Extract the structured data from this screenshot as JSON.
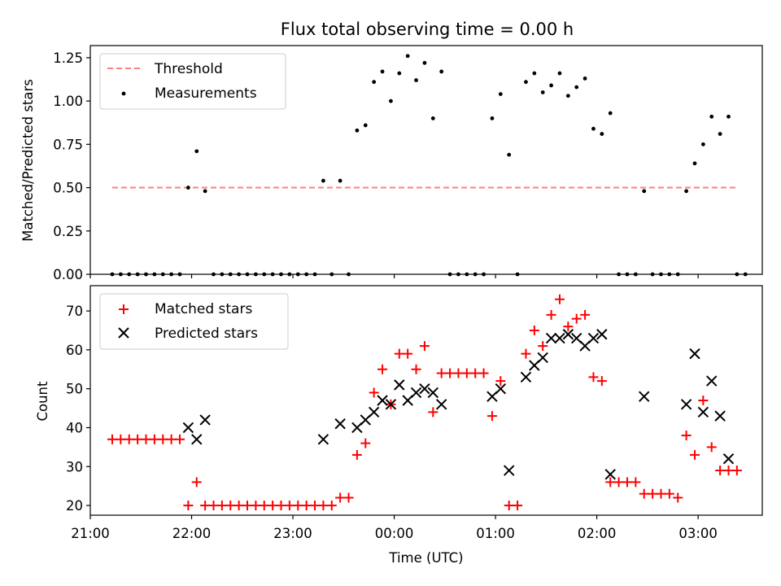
{
  "figure": {
    "title": "Flux total observing time = 0.00 h"
  },
  "colors": {
    "threshold": "#ff7f7f",
    "measurements": "#000000",
    "matched": "#ff0000",
    "predicted": "#000000",
    "axes": "#000000"
  },
  "chart_data": [
    {
      "type": "scatter",
      "panel": "top",
      "ylabel": "Matched/Predicted stars",
      "xlabel": "",
      "ylim": [
        0,
        1.32
      ],
      "yticks": [
        "0.00",
        "0.25",
        "0.50",
        "0.75",
        "1.00",
        "1.25"
      ],
      "ytick_values": [
        0,
        0.25,
        0.5,
        0.75,
        1.0,
        1.25
      ],
      "xlim": [
        "21:00",
        "03:38"
      ],
      "xticks": [],
      "legend": {
        "placement": "top-left",
        "entries": [
          "Threshold",
          "Measurements"
        ]
      },
      "threshold": {
        "name": "Threshold",
        "value": 0.5,
        "x_range": [
          "21:13",
          "03:23"
        ]
      },
      "series": [
        {
          "name": "Measurements",
          "points": [
            [
              "21:13",
              0
            ],
            [
              "21:18",
              0
            ],
            [
              "21:23",
              0
            ],
            [
              "21:28",
              0
            ],
            [
              "21:33",
              0
            ],
            [
              "21:38",
              0
            ],
            [
              "21:43",
              0
            ],
            [
              "21:48",
              0
            ],
            [
              "21:53",
              0
            ],
            [
              "21:58",
              0.5
            ],
            [
              "22:03",
              0.71
            ],
            [
              "22:08",
              0.48
            ],
            [
              "22:13",
              0
            ],
            [
              "22:18",
              0
            ],
            [
              "22:23",
              0
            ],
            [
              "22:28",
              0
            ],
            [
              "22:33",
              0
            ],
            [
              "22:38",
              0
            ],
            [
              "22:43",
              0
            ],
            [
              "22:48",
              0
            ],
            [
              "22:53",
              0
            ],
            [
              "22:58",
              0
            ],
            [
              "23:03",
              0
            ],
            [
              "23:08",
              0
            ],
            [
              "23:13",
              0
            ],
            [
              "23:18",
              0.54
            ],
            [
              "23:23",
              0
            ],
            [
              "23:28",
              0.54
            ],
            [
              "23:33",
              0
            ],
            [
              "23:38",
              0.83
            ],
            [
              "23:43",
              0.86
            ],
            [
              "23:48",
              1.11
            ],
            [
              "23:53",
              1.17
            ],
            [
              "23:58",
              1.0
            ],
            [
              "00:03",
              1.16
            ],
            [
              "00:08",
              1.26
            ],
            [
              "00:13",
              1.12
            ],
            [
              "00:18",
              1.22
            ],
            [
              "00:23",
              0.9
            ],
            [
              "00:28",
              1.17
            ],
            [
              "00:33",
              0
            ],
            [
              "00:38",
              0
            ],
            [
              "00:43",
              0
            ],
            [
              "00:48",
              0
            ],
            [
              "00:53",
              0
            ],
            [
              "00:58",
              0.9
            ],
            [
              "01:03",
              1.04
            ],
            [
              "01:08",
              0.69
            ],
            [
              "01:13",
              0
            ],
            [
              "01:18",
              1.11
            ],
            [
              "01:23",
              1.16
            ],
            [
              "01:28",
              1.05
            ],
            [
              "01:33",
              1.09
            ],
            [
              "01:38",
              1.16
            ],
            [
              "01:43",
              1.03
            ],
            [
              "01:48",
              1.08
            ],
            [
              "01:53",
              1.13
            ],
            [
              "01:58",
              0.84
            ],
            [
              "02:03",
              0.81
            ],
            [
              "02:08",
              0.93
            ],
            [
              "02:13",
              0
            ],
            [
              "02:18",
              0
            ],
            [
              "02:23",
              0
            ],
            [
              "02:28",
              0.48
            ],
            [
              "02:33",
              0
            ],
            [
              "02:38",
              0
            ],
            [
              "02:43",
              0
            ],
            [
              "02:48",
              0
            ],
            [
              "02:53",
              0.48
            ],
            [
              "02:58",
              0.64
            ],
            [
              "03:03",
              0.75
            ],
            [
              "03:08",
              0.91
            ],
            [
              "03:13",
              0.81
            ],
            [
              "03:18",
              0.91
            ],
            [
              "03:23",
              0
            ],
            [
              "03:28",
              0
            ]
          ]
        }
      ]
    },
    {
      "type": "scatter",
      "panel": "bottom",
      "ylabel": "Count",
      "xlabel": "Time (UTC)",
      "ylim": [
        17.5,
        76.5
      ],
      "yticks": [
        "20",
        "30",
        "40",
        "50",
        "60",
        "70"
      ],
      "ytick_values": [
        20,
        30,
        40,
        50,
        60,
        70
      ],
      "xlim": [
        "21:00",
        "03:38"
      ],
      "xticks": [
        "21:00",
        "22:00",
        "23:00",
        "00:00",
        "01:00",
        "02:00",
        "03:00"
      ],
      "legend": {
        "placement": "top-left",
        "entries": [
          "Matched stars",
          "Predicted stars"
        ]
      },
      "series": [
        {
          "name": "Matched stars",
          "points": [
            [
              "21:13",
              37
            ],
            [
              "21:18",
              37
            ],
            [
              "21:23",
              37
            ],
            [
              "21:28",
              37
            ],
            [
              "21:33",
              37
            ],
            [
              "21:38",
              37
            ],
            [
              "21:43",
              37
            ],
            [
              "21:48",
              37
            ],
            [
              "21:53",
              37
            ],
            [
              "21:58",
              20
            ],
            [
              "22:03",
              26
            ],
            [
              "22:08",
              20
            ],
            [
              "22:13",
              20
            ],
            [
              "22:18",
              20
            ],
            [
              "22:23",
              20
            ],
            [
              "22:28",
              20
            ],
            [
              "22:33",
              20
            ],
            [
              "22:38",
              20
            ],
            [
              "22:43",
              20
            ],
            [
              "22:48",
              20
            ],
            [
              "22:53",
              20
            ],
            [
              "22:58",
              20
            ],
            [
              "23:03",
              20
            ],
            [
              "23:08",
              20
            ],
            [
              "23:13",
              20
            ],
            [
              "23:18",
              20
            ],
            [
              "23:23",
              20
            ],
            [
              "23:28",
              22
            ],
            [
              "23:33",
              22
            ],
            [
              "23:38",
              33
            ],
            [
              "23:43",
              36
            ],
            [
              "23:48",
              49
            ],
            [
              "23:53",
              55
            ],
            [
              "23:58",
              46
            ],
            [
              "00:03",
              59
            ],
            [
              "00:08",
              59
            ],
            [
              "00:13",
              55
            ],
            [
              "00:18",
              61
            ],
            [
              "00:23",
              44
            ],
            [
              "00:28",
              54
            ],
            [
              "00:33",
              54
            ],
            [
              "00:38",
              54
            ],
            [
              "00:43",
              54
            ],
            [
              "00:48",
              54
            ],
            [
              "00:53",
              54
            ],
            [
              "00:58",
              43
            ],
            [
              "01:03",
              52
            ],
            [
              "01:08",
              20
            ],
            [
              "01:13",
              20
            ],
            [
              "01:18",
              59
            ],
            [
              "01:23",
              65
            ],
            [
              "01:28",
              61
            ],
            [
              "01:33",
              69
            ],
            [
              "01:38",
              73
            ],
            [
              "01:43",
              66
            ],
            [
              "01:48",
              68
            ],
            [
              "01:53",
              69
            ],
            [
              "01:58",
              53
            ],
            [
              "02:03",
              52
            ],
            [
              "02:08",
              26
            ],
            [
              "02:13",
              26
            ],
            [
              "02:18",
              26
            ],
            [
              "02:23",
              26
            ],
            [
              "02:28",
              23
            ],
            [
              "02:33",
              23
            ],
            [
              "02:38",
              23
            ],
            [
              "02:43",
              23
            ],
            [
              "02:48",
              22
            ],
            [
              "02:53",
              38
            ],
            [
              "02:58",
              33
            ],
            [
              "03:03",
              47
            ],
            [
              "03:08",
              35
            ],
            [
              "03:13",
              29
            ],
            [
              "03:18",
              29
            ],
            [
              "03:23",
              29
            ]
          ]
        },
        {
          "name": "Predicted stars",
          "points": [
            [
              "21:58",
              40
            ],
            [
              "22:03",
              37
            ],
            [
              "22:08",
              42
            ],
            [
              "23:18",
              37
            ],
            [
              "23:28",
              41
            ],
            [
              "23:38",
              40
            ],
            [
              "23:43",
              42
            ],
            [
              "23:48",
              44
            ],
            [
              "23:53",
              47
            ],
            [
              "23:58",
              46
            ],
            [
              "00:03",
              51
            ],
            [
              "00:08",
              47
            ],
            [
              "00:13",
              49
            ],
            [
              "00:18",
              50
            ],
            [
              "00:23",
              49
            ],
            [
              "00:28",
              46
            ],
            [
              "00:58",
              48
            ],
            [
              "01:03",
              50
            ],
            [
              "01:08",
              29
            ],
            [
              "01:18",
              53
            ],
            [
              "01:23",
              56
            ],
            [
              "01:28",
              58
            ],
            [
              "01:33",
              63
            ],
            [
              "01:38",
              63
            ],
            [
              "01:43",
              64
            ],
            [
              "01:48",
              63
            ],
            [
              "01:53",
              61
            ],
            [
              "01:58",
              63
            ],
            [
              "02:03",
              64
            ],
            [
              "02:08",
              28
            ],
            [
              "02:28",
              48
            ],
            [
              "02:53",
              46
            ],
            [
              "02:58",
              59
            ],
            [
              "03:03",
              44
            ],
            [
              "03:08",
              52
            ],
            [
              "03:13",
              43
            ],
            [
              "03:18",
              32
            ]
          ]
        }
      ]
    }
  ]
}
